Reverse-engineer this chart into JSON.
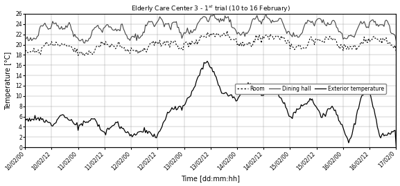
{
  "title": "Elderly Care Center 3 - 1st trial (10 to 16 February)",
  "xlabel": "Time [dd:mm:hh]",
  "ylabel": "Temperature [°C]",
  "ylim": [
    0,
    26
  ],
  "yticks": [
    0,
    2,
    4,
    6,
    8,
    10,
    12,
    14,
    16,
    18,
    20,
    22,
    24,
    26
  ],
  "xtick_labels": [
    "10/02/00",
    "10/02/12",
    "11/02/00",
    "11/02/12",
    "12/02/00",
    "12/02/12",
    "13/02/00",
    "13/02/12",
    "14/02/00",
    "14/02/12",
    "15/02/00",
    "15/02/12",
    "16/02/00",
    "16/02/12",
    "17/02/0"
  ],
  "line_color_room": "#000000",
  "line_color_dining": "#555555",
  "line_color_exterior": "#000000",
  "legend_labels": [
    "Room",
    "Dining hall",
    "Exterior temperature"
  ],
  "figsize": [
    5.77,
    2.69
  ],
  "dpi": 100,
  "background": "#ffffff"
}
